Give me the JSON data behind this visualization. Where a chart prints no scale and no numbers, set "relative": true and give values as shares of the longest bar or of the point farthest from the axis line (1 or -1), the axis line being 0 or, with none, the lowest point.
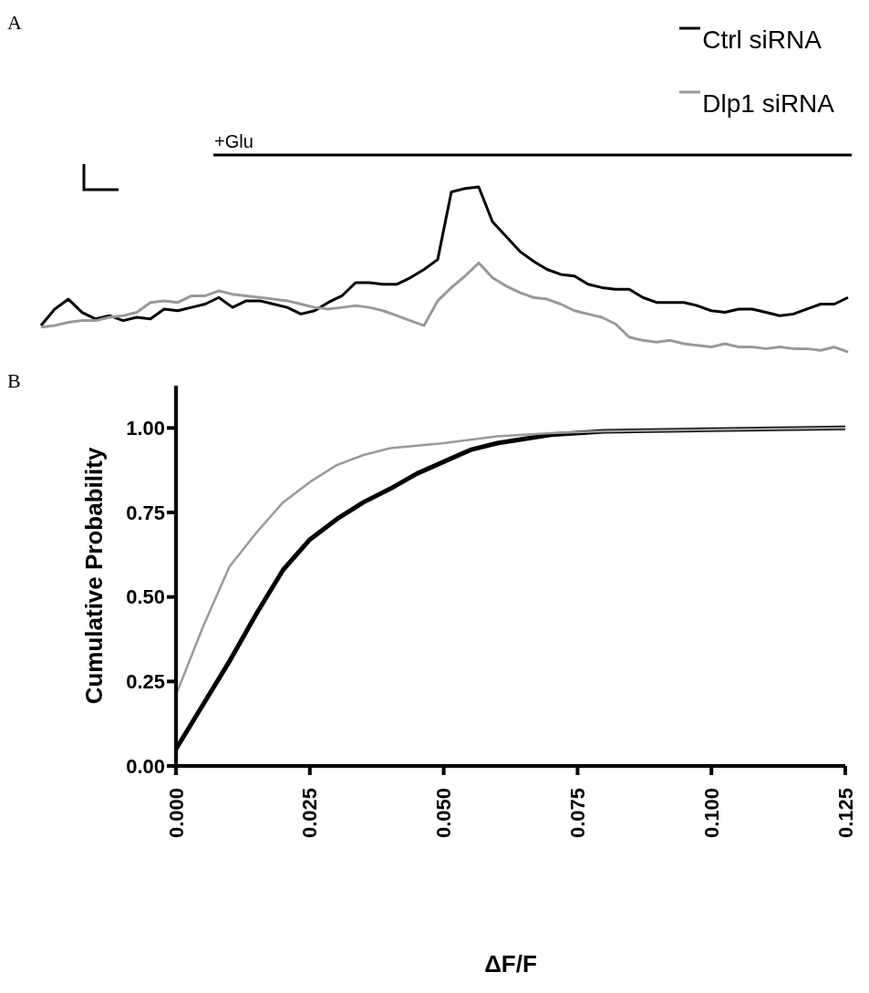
{
  "chart_data": [
    {
      "type": "line",
      "relative": true,
      "legend": "top right",
      "annotations": [
        "A",
        "+Glu"
      ],
      "categories": [
        null,
        null,
        null,
        null,
        null,
        null,
        null,
        null,
        null,
        null,
        null,
        null,
        null,
        null,
        null,
        null,
        null,
        null,
        null,
        null,
        null,
        null,
        null,
        null,
        null,
        null,
        null,
        null,
        null,
        null,
        null,
        null,
        null,
        null,
        null,
        null,
        null,
        null,
        null,
        null,
        null,
        null,
        null,
        null,
        null,
        null,
        null,
        null,
        null,
        null,
        null,
        null,
        null,
        null,
        null,
        null,
        null,
        null,
        null,
        null
      ],
      "series": [
        {
          "name": "Ctrl siRNA",
          "color": "#000000",
          "values": [
            0.16,
            0.26,
            0.32,
            0.24,
            0.2,
            0.22,
            0.19,
            0.21,
            0.2,
            0.26,
            0.25,
            0.27,
            0.29,
            0.33,
            0.27,
            0.31,
            0.31,
            0.29,
            0.27,
            0.23,
            0.25,
            0.3,
            0.34,
            0.42,
            0.42,
            0.41,
            0.41,
            0.45,
            0.5,
            0.56,
            0.97,
            0.99,
            1.0,
            0.79,
            0.7,
            0.61,
            0.55,
            0.5,
            0.47,
            0.46,
            0.41,
            0.39,
            0.38,
            0.38,
            0.33,
            0.3,
            0.3,
            0.3,
            0.28,
            0.25,
            0.24,
            0.26,
            0.26,
            0.24,
            0.22,
            0.23,
            0.26,
            0.29,
            0.29,
            0.33
          ]
        },
        {
          "name": "Dlp1 siRNA",
          "color": "#999999",
          "values": [
            0.15,
            0.16,
            0.18,
            0.19,
            0.19,
            0.21,
            0.22,
            0.24,
            0.3,
            0.31,
            0.3,
            0.34,
            0.34,
            0.37,
            0.35,
            0.34,
            0.33,
            0.32,
            0.31,
            0.29,
            0.27,
            0.26,
            0.27,
            0.28,
            0.27,
            0.25,
            0.22,
            0.19,
            0.16,
            0.31,
            0.39,
            0.46,
            0.54,
            0.45,
            0.4,
            0.36,
            0.33,
            0.32,
            0.29,
            0.25,
            0.23,
            0.21,
            0.17,
            0.09,
            0.07,
            0.06,
            0.07,
            0.05,
            0.04,
            0.03,
            0.05,
            0.03,
            0.03,
            0.02,
            0.03,
            0.02,
            0.02,
            0.01,
            0.03,
            0
          ]
        }
      ]
    },
    {
      "type": "line",
      "annotations": [
        "B"
      ],
      "xlabel": "ΔF/F",
      "ylabel": "Cumulative Probability",
      "xlim": [
        0,
        0.125
      ],
      "ylim": [
        0,
        1.125
      ],
      "xticks": [
        {
          "value": 0,
          "label": "0.000"
        },
        {
          "value": 0.025,
          "label": "0.025"
        },
        {
          "value": 0.05,
          "label": "0.050"
        },
        {
          "value": 0.075,
          "label": "0.075"
        },
        {
          "value": 0.1,
          "label": "0.100"
        },
        {
          "value": 0.125,
          "label": "0.125"
        }
      ],
      "yticks": [
        {
          "value": 0,
          "label": "0.00"
        },
        {
          "value": 0.25,
          "label": "0.25"
        },
        {
          "value": 0.5,
          "label": "0.50"
        },
        {
          "value": 0.75,
          "label": "0.75"
        },
        {
          "value": 1,
          "label": "1.00"
        }
      ],
      "series": [
        {
          "color": "#000000",
          "x": [
            0,
            0.005,
            0.01,
            0.015,
            0.02,
            0.025,
            0.03,
            0.035,
            0.04,
            0.045,
            0.05,
            0.055,
            0.06,
            0.07,
            0.08,
            0.1,
            0.125
          ],
          "values": [
            0.05,
            0.18,
            0.31,
            0.45,
            0.58,
            0.67,
            0.73,
            0.78,
            0.82,
            0.865,
            0.9,
            0.935,
            0.955,
            0.98,
            0.99,
            0.995,
            1.0
          ]
        },
        {
          "color": "#999999",
          "x": [
            0,
            0.005,
            0.01,
            0.015,
            0.02,
            0.025,
            0.03,
            0.035,
            0.04,
            0.05,
            0.06,
            0.07,
            0.08,
            0.1,
            0.125
          ],
          "values": [
            0.21,
            0.41,
            0.59,
            0.69,
            0.78,
            0.84,
            0.89,
            0.92,
            0.94,
            0.955,
            0.975,
            0.985,
            0.99,
            0.995,
            1.0
          ]
        }
      ]
    }
  ]
}
